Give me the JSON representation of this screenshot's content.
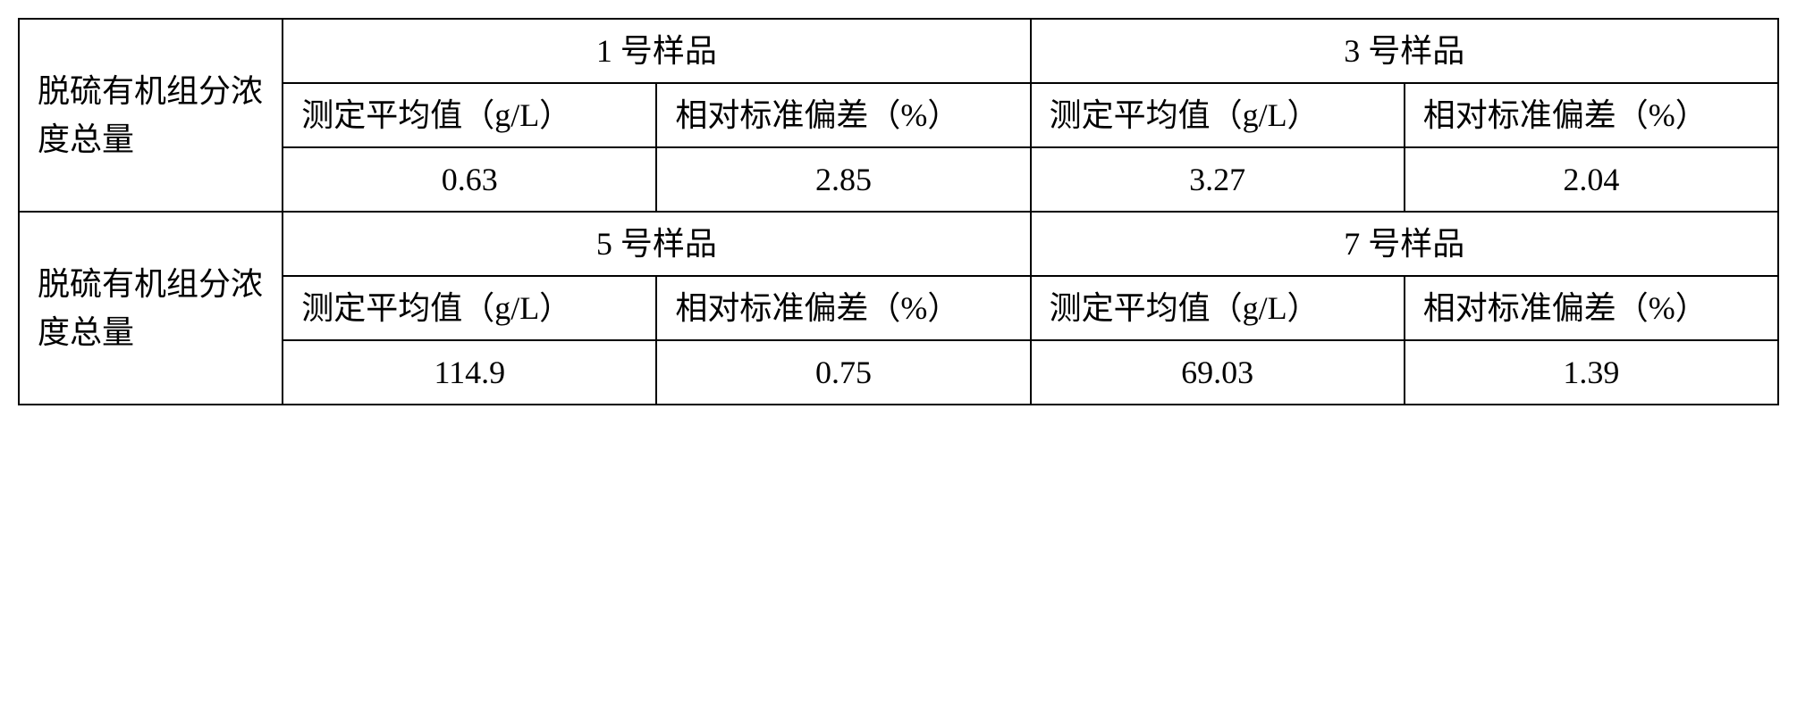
{
  "table": {
    "type": "table",
    "border_color": "#000000",
    "background_color": "#ffffff",
    "border_width": 2,
    "font_size": 36,
    "sections": [
      {
        "row_label": "脱硫有机组分浓度总量",
        "samples": [
          {
            "sample_name": "1 号样品",
            "avg_label": "测定平均值（g/L）",
            "rsd_label": "相对标准偏差（%）",
            "avg_value": "0.63",
            "rsd_value": "2.85"
          },
          {
            "sample_name": "3 号样品",
            "avg_label": "测定平均值（g/L）",
            "rsd_label": "相对标准偏差（%）",
            "avg_value": "3.27",
            "rsd_value": "2.04"
          }
        ]
      },
      {
        "row_label": "脱硫有机组分浓度总量",
        "samples": [
          {
            "sample_name": "5 号样品",
            "avg_label": "测定平均值（g/L）",
            "rsd_label": "相对标准偏差（%）",
            "avg_value": "114.9",
            "rsd_value": "0.75"
          },
          {
            "sample_name": "7 号样品",
            "avg_label": "测定平均值（g/L）",
            "rsd_label": "相对标准偏差（%）",
            "avg_value": "69.03",
            "rsd_value": "1.39"
          }
        ]
      }
    ]
  }
}
